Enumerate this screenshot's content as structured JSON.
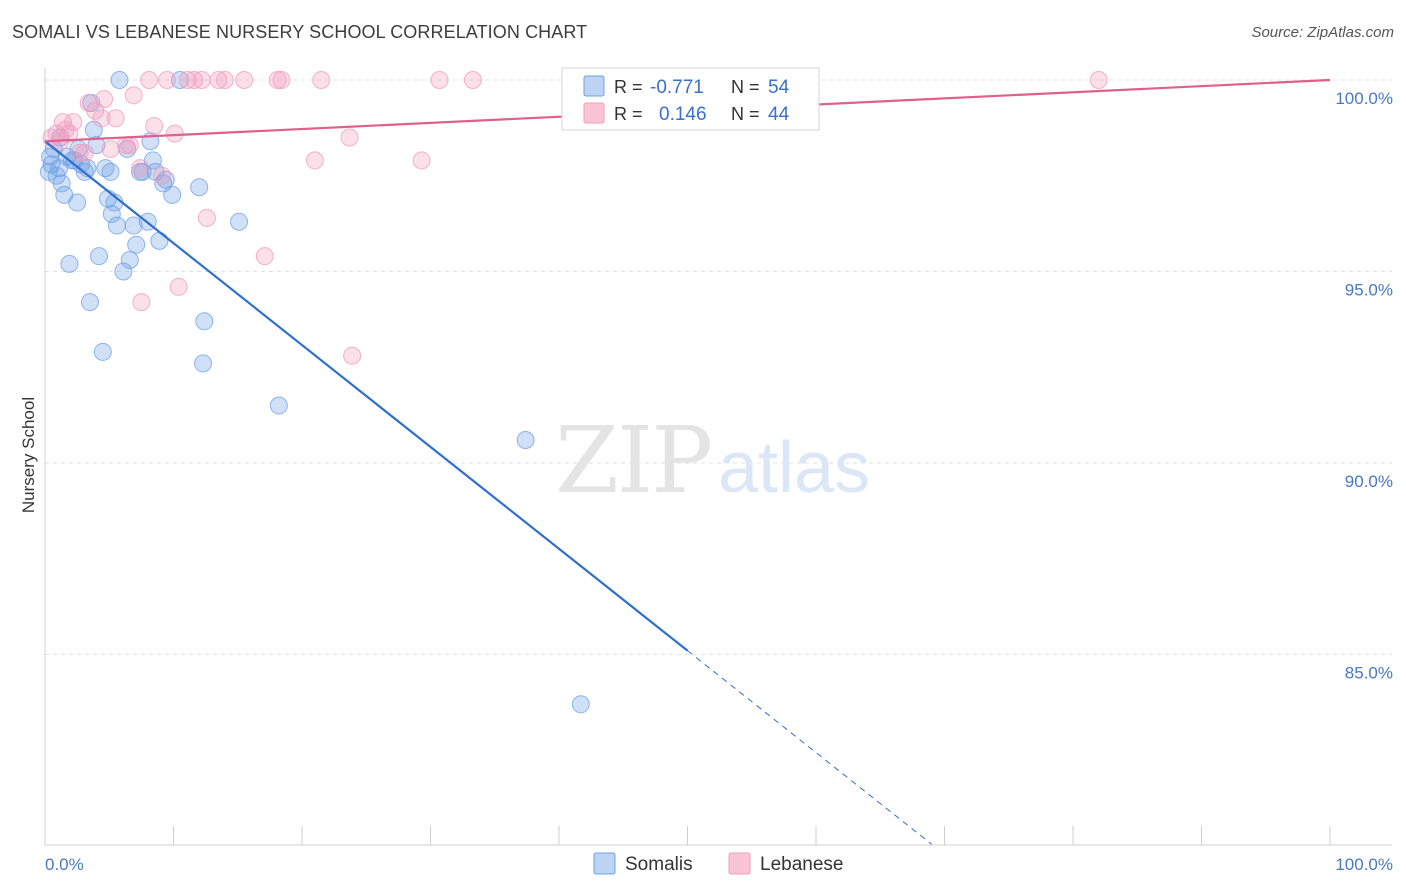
{
  "title": "SOMALI VS LEBANESE NURSERY SCHOOL CORRELATION CHART",
  "source": "Source: ZipAtlas.com",
  "watermark": {
    "zip": "ZIP",
    "atlas": "atlas"
  },
  "chart_data": {
    "type": "scatter",
    "ylabel": "Nursery School",
    "xlim": [
      0,
      100
    ],
    "ylim": [
      80.5,
      100.8
    ],
    "x_tick_labels": [
      "0.0%",
      "100.0%"
    ],
    "y_ticks": [
      {
        "value": 100,
        "label": "100.0%"
      },
      {
        "value": 95,
        "label": "95.0%"
      },
      {
        "value": 90,
        "label": "90.0%"
      },
      {
        "value": 85,
        "label": "85.0%"
      }
    ],
    "legend": {
      "r_label": "R =",
      "n_label": "N =",
      "entries": [
        {
          "r": "-0.771",
          "n": "54"
        },
        {
          "r": "0.146",
          "n": "44"
        }
      ]
    },
    "series": [
      {
        "name": "Somalis",
        "color": "#6ea0e6",
        "line_color": "#2f6fd0",
        "trend": {
          "x0": 0,
          "y0": 98.4,
          "x1": 50,
          "y1": 85.1,
          "dash_to_x": 69
        },
        "points": [
          [
            0.3,
            97.6
          ],
          [
            0.5,
            97.8
          ],
          [
            0.7,
            98.2
          ],
          [
            0.9,
            97.5
          ],
          [
            1.1,
            97.7
          ],
          [
            1.3,
            97.3
          ],
          [
            1.5,
            97.0
          ],
          [
            1.7,
            98.0
          ],
          [
            1.9,
            95.2
          ],
          [
            2.1,
            97.9
          ],
          [
            2.3,
            97.9
          ],
          [
            2.5,
            96.8
          ],
          [
            2.8,
            97.8
          ],
          [
            3.1,
            97.6
          ],
          [
            3.3,
            97.7
          ],
          [
            3.5,
            94.2
          ],
          [
            3.8,
            98.7
          ],
          [
            3.6,
            99.4
          ],
          [
            4.0,
            98.3
          ],
          [
            4.2,
            95.4
          ],
          [
            4.5,
            92.9
          ],
          [
            4.7,
            97.7
          ],
          [
            4.9,
            96.9
          ],
          [
            5.1,
            97.6
          ],
          [
            5.2,
            96.5
          ],
          [
            5.4,
            96.8
          ],
          [
            5.6,
            96.2
          ],
          [
            5.8,
            100.0
          ],
          [
            6.1,
            95.0
          ],
          [
            6.4,
            98.2
          ],
          [
            6.6,
            95.3
          ],
          [
            6.9,
            96.2
          ],
          [
            7.1,
            95.7
          ],
          [
            7.4,
            97.6
          ],
          [
            7.6,
            97.6
          ],
          [
            8.0,
            96.3
          ],
          [
            8.2,
            98.4
          ],
          [
            8.4,
            97.9
          ],
          [
            8.6,
            97.6
          ],
          [
            8.9,
            95.8
          ],
          [
            9.2,
            97.3
          ],
          [
            9.4,
            97.4
          ],
          [
            9.9,
            97.0
          ],
          [
            10.5,
            100.0
          ],
          [
            12.0,
            97.2
          ],
          [
            12.4,
            93.7
          ],
          [
            12.3,
            92.6
          ],
          [
            15.1,
            96.3
          ],
          [
            18.2,
            91.5
          ],
          [
            37.4,
            90.6
          ],
          [
            41.7,
            83.7
          ],
          [
            0.4,
            98.0
          ],
          [
            2.6,
            98.2
          ],
          [
            1.2,
            98.5
          ]
        ]
      },
      {
        "name": "Lebanese",
        "color": "#f29bbb",
        "line_color": "#e0608a",
        "trend": {
          "x0": 0,
          "y0": 98.4,
          "x1": 100,
          "y1": 100.0
        },
        "points": [
          [
            0.5,
            98.5
          ],
          [
            0.9,
            98.6
          ],
          [
            1.2,
            98.4
          ],
          [
            1.4,
            98.9
          ],
          [
            1.6,
            98.7
          ],
          [
            1.9,
            98.6
          ],
          [
            2.2,
            98.9
          ],
          [
            2.7,
            98.1
          ],
          [
            3.1,
            98.1
          ],
          [
            3.4,
            99.4
          ],
          [
            3.9,
            99.2
          ],
          [
            4.4,
            99.0
          ],
          [
            4.6,
            99.5
          ],
          [
            5.1,
            98.2
          ],
          [
            5.5,
            99.0
          ],
          [
            6.3,
            98.3
          ],
          [
            6.6,
            98.3
          ],
          [
            6.9,
            99.6
          ],
          [
            7.4,
            97.7
          ],
          [
            7.5,
            94.2
          ],
          [
            8.1,
            100.0
          ],
          [
            8.5,
            98.8
          ],
          [
            9.1,
            97.5
          ],
          [
            9.5,
            100.0
          ],
          [
            10.1,
            98.6
          ],
          [
            10.4,
            94.6
          ],
          [
            11.1,
            100.0
          ],
          [
            11.6,
            100.0
          ],
          [
            12.2,
            100.0
          ],
          [
            12.6,
            96.4
          ],
          [
            13.5,
            100.0
          ],
          [
            14.0,
            100.0
          ],
          [
            15.5,
            100.0
          ],
          [
            17.1,
            95.4
          ],
          [
            18.1,
            100.0
          ],
          [
            18.4,
            100.0
          ],
          [
            21.0,
            97.9
          ],
          [
            21.5,
            100.0
          ],
          [
            23.7,
            98.5
          ],
          [
            23.9,
            92.8
          ],
          [
            29.3,
            97.9
          ],
          [
            30.7,
            100.0
          ],
          [
            33.3,
            100.0
          ],
          [
            82.0,
            100.0
          ]
        ]
      }
    ]
  }
}
